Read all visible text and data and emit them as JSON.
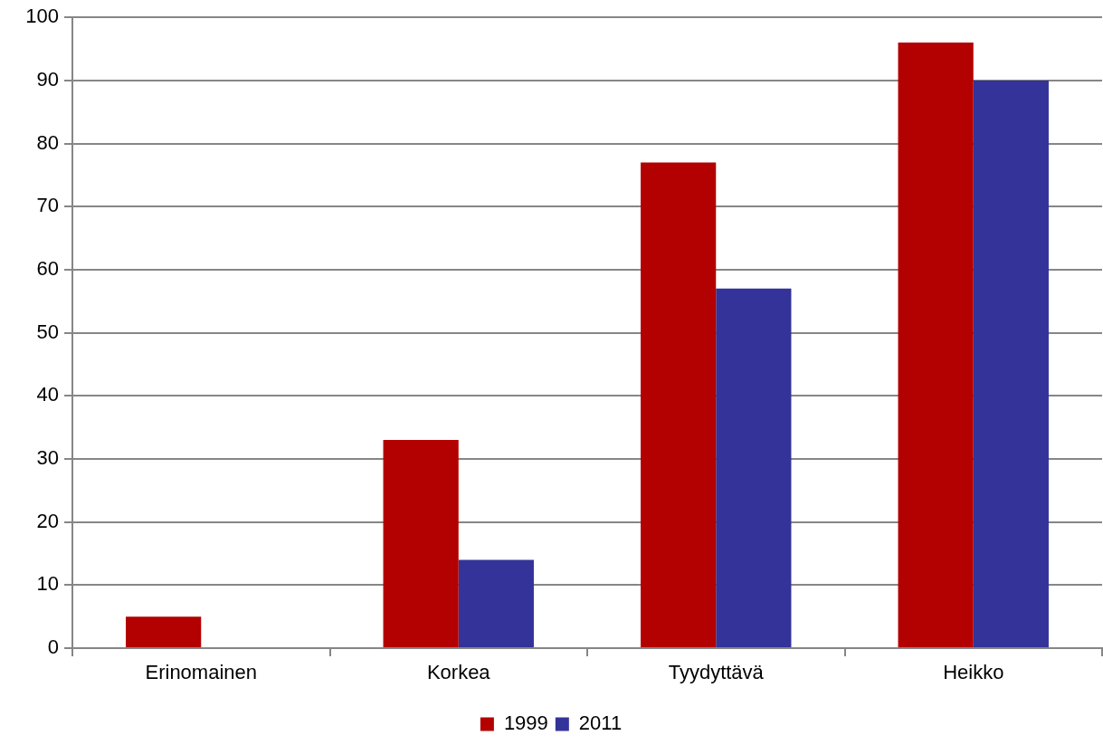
{
  "chart_data": {
    "type": "bar",
    "categories": [
      "Erinomainen",
      "Korkea",
      "Tyydyttävä",
      "Heikko"
    ],
    "series": [
      {
        "name": "1999",
        "color": "#b30000",
        "values": [
          5,
          33,
          77,
          96
        ]
      },
      {
        "name": "2011",
        "color": "#333399",
        "values": [
          null,
          14,
          57,
          90
        ]
      }
    ],
    "ylim": [
      0,
      100
    ],
    "yticks": [
      0,
      10,
      20,
      30,
      40,
      50,
      60,
      70,
      80,
      90,
      100
    ],
    "grid": "y",
    "legend": "bottom"
  }
}
